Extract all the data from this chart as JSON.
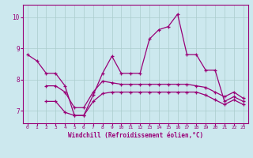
{
  "xlabel": "Windchill (Refroidissement éolien,°C)",
  "xlim": [
    -0.5,
    23.5
  ],
  "ylim": [
    6.6,
    10.4
  ],
  "yticks": [
    7,
    8,
    9,
    10
  ],
  "xticks": [
    0,
    1,
    2,
    3,
    4,
    5,
    6,
    7,
    8,
    9,
    10,
    11,
    12,
    13,
    14,
    15,
    16,
    17,
    18,
    19,
    20,
    21,
    22,
    23
  ],
  "background_color": "#cce8ee",
  "grid_color": "#aacccc",
  "line_color": "#990077",
  "line1": [
    8.8,
    8.6,
    8.2,
    8.2,
    7.8,
    6.85,
    6.85,
    7.5,
    8.2,
    8.75,
    8.2,
    8.2,
    8.2,
    9.3,
    9.6,
    9.7,
    10.1,
    8.8,
    8.8,
    8.3,
    8.3,
    7.3,
    7.45,
    7.3
  ],
  "line2": [
    null,
    null,
    7.8,
    7.8,
    7.6,
    7.1,
    7.1,
    7.6,
    7.95,
    7.9,
    7.85,
    7.85,
    7.85,
    7.85,
    7.85,
    7.85,
    7.85,
    7.85,
    7.8,
    7.75,
    7.6,
    7.45,
    7.6,
    7.4
  ],
  "line3": [
    null,
    null,
    7.3,
    7.3,
    6.95,
    6.85,
    6.85,
    7.3,
    7.55,
    7.6,
    7.6,
    7.6,
    7.6,
    7.6,
    7.6,
    7.6,
    7.6,
    7.6,
    7.6,
    7.5,
    7.35,
    7.2,
    7.35,
    7.2
  ]
}
